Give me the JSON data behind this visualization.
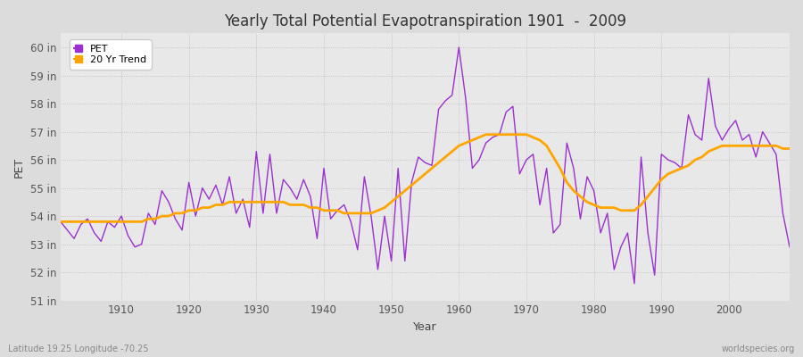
{
  "title": "Yearly Total Potential Evapotranspiration 1901  -  2009",
  "ylabel": "PET",
  "xlabel": "Year",
  "footer_left": "Latitude 19.25 Longitude -70.25",
  "footer_right": "worldspecies.org",
  "ylim": [
    51,
    60.5
  ],
  "yticks": [
    51,
    52,
    53,
    54,
    55,
    56,
    57,
    58,
    59,
    60
  ],
  "ytick_labels": [
    "51 in",
    "52 in",
    "53 in",
    "54 in",
    "55 in",
    "56 in",
    "57 in",
    "58 in",
    "59 in",
    "60 in"
  ],
  "xlim": [
    1901,
    2009
  ],
  "xticks": [
    1910,
    1920,
    1930,
    1940,
    1950,
    1960,
    1970,
    1980,
    1990,
    2000
  ],
  "pet_color": "#9B30D0",
  "trend_color": "#FFA500",
  "background_color": "#DCDCDC",
  "plot_bg_color": "#E8E8E8",
  "years": [
    1901,
    1902,
    1903,
    1904,
    1905,
    1906,
    1907,
    1908,
    1909,
    1910,
    1911,
    1912,
    1913,
    1914,
    1915,
    1916,
    1917,
    1918,
    1919,
    1920,
    1921,
    1922,
    1923,
    1924,
    1925,
    1926,
    1927,
    1928,
    1929,
    1930,
    1931,
    1932,
    1933,
    1934,
    1935,
    1936,
    1937,
    1938,
    1939,
    1940,
    1941,
    1942,
    1943,
    1944,
    1945,
    1946,
    1947,
    1948,
    1949,
    1950,
    1951,
    1952,
    1953,
    1954,
    1955,
    1956,
    1957,
    1958,
    1959,
    1960,
    1961,
    1962,
    1963,
    1964,
    1965,
    1966,
    1967,
    1968,
    1969,
    1970,
    1971,
    1972,
    1973,
    1974,
    1975,
    1976,
    1977,
    1978,
    1979,
    1980,
    1981,
    1982,
    1983,
    1984,
    1985,
    1986,
    1987,
    1988,
    1989,
    1990,
    1991,
    1992,
    1993,
    1994,
    1995,
    1996,
    1997,
    1998,
    1999,
    2000,
    2001,
    2002,
    2003,
    2004,
    2005,
    2006,
    2007,
    2008,
    2009
  ],
  "pet_values": [
    53.8,
    53.5,
    53.2,
    53.7,
    53.9,
    53.4,
    53.1,
    53.8,
    53.6,
    54.0,
    53.3,
    52.9,
    53.0,
    54.1,
    53.7,
    54.9,
    54.5,
    53.9,
    53.5,
    55.2,
    54.0,
    55.0,
    54.6,
    55.1,
    54.4,
    55.4,
    54.1,
    54.6,
    53.6,
    56.3,
    54.1,
    56.2,
    54.1,
    55.3,
    55.0,
    54.6,
    55.3,
    54.7,
    53.2,
    55.7,
    53.9,
    54.2,
    54.4,
    53.8,
    52.8,
    55.4,
    54.0,
    52.1,
    54.0,
    52.4,
    55.7,
    52.4,
    55.2,
    56.1,
    55.9,
    55.8,
    57.8,
    58.1,
    58.3,
    60.0,
    58.2,
    55.7,
    56.0,
    56.6,
    56.8,
    56.9,
    57.7,
    57.9,
    55.5,
    56.0,
    56.2,
    54.4,
    55.7,
    53.4,
    53.7,
    56.6,
    55.7,
    53.9,
    55.4,
    54.9,
    53.4,
    54.1,
    52.1,
    52.9,
    53.4,
    51.6,
    56.1,
    53.4,
    51.9,
    56.2,
    56.0,
    55.9,
    55.7,
    57.6,
    56.9,
    56.7,
    58.9,
    57.2,
    56.7,
    57.1,
    57.4,
    56.7,
    56.9,
    56.1,
    57.0,
    56.6,
    56.2,
    54.1,
    52.9
  ],
  "trend_values": [
    53.8,
    53.8,
    53.8,
    53.8,
    53.8,
    53.8,
    53.8,
    53.8,
    53.8,
    53.8,
    53.8,
    53.8,
    53.8,
    53.9,
    53.9,
    54.0,
    54.0,
    54.1,
    54.1,
    54.2,
    54.2,
    54.3,
    54.3,
    54.4,
    54.4,
    54.5,
    54.5,
    54.5,
    54.5,
    54.5,
    54.5,
    54.5,
    54.5,
    54.5,
    54.4,
    54.4,
    54.4,
    54.3,
    54.3,
    54.2,
    54.2,
    54.2,
    54.1,
    54.1,
    54.1,
    54.1,
    54.1,
    54.2,
    54.3,
    54.5,
    54.7,
    54.9,
    55.1,
    55.3,
    55.5,
    55.7,
    55.9,
    56.1,
    56.3,
    56.5,
    56.6,
    56.7,
    56.8,
    56.9,
    56.9,
    56.9,
    56.9,
    56.9,
    56.9,
    56.9,
    56.8,
    56.7,
    56.5,
    56.1,
    55.7,
    55.2,
    54.9,
    54.7,
    54.5,
    54.4,
    54.3,
    54.3,
    54.3,
    54.2,
    54.2,
    54.2,
    54.4,
    54.7,
    55.0,
    55.3,
    55.5,
    55.6,
    55.7,
    55.8,
    56.0,
    56.1,
    56.3,
    56.4,
    56.5,
    56.5,
    56.5,
    56.5,
    56.5,
    56.5,
    56.5,
    56.5,
    56.5,
    56.4,
    56.4
  ]
}
